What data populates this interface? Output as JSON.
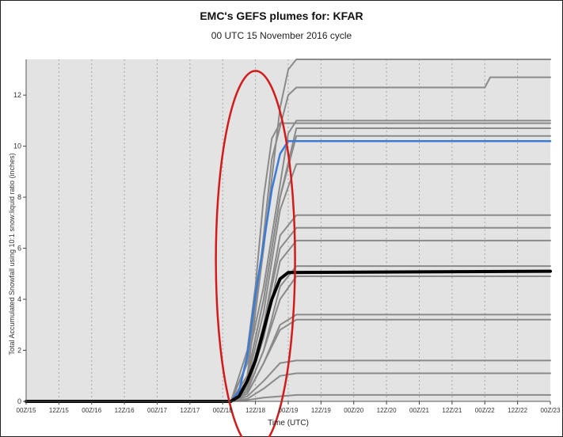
{
  "chart_data": {
    "type": "line",
    "title": "EMC's GEFS plumes for: KFAR",
    "subtitle": "00 UTC 15 November 2016 cycle",
    "xlabel": "Time (UTC)",
    "ylabel": "Total Accumulated Snowfall using 10:1 snow:liquid ratio (inches)",
    "x_ticks": [
      "00Z/15",
      "12Z/15",
      "00Z/16",
      "12Z/16",
      "00Z/17",
      "12Z/17",
      "00Z/18",
      "12Z/18",
      "00Z/19",
      "12Z/19",
      "00Z/20",
      "12Z/20",
      "00Z/21",
      "12Z/21",
      "00Z/22",
      "12Z/22",
      "00Z/23"
    ],
    "xlim": [
      0,
      192
    ],
    "ylim": [
      0,
      13.4
    ],
    "y_ticks": [
      0,
      2,
      4,
      6,
      8,
      10,
      12
    ],
    "grid": true,
    "series": [
      {
        "role": "member",
        "color": "#8a8a8a",
        "width": 2,
        "points": [
          [
            0,
            0
          ],
          [
            75,
            0
          ],
          [
            81,
            1.0
          ],
          [
            87,
            6.0
          ],
          [
            93,
            11.5
          ],
          [
            96,
            13.0
          ],
          [
            99,
            13.4
          ],
          [
            192,
            13.4
          ]
        ]
      },
      {
        "role": "member",
        "color": "#8a8a8a",
        "width": 2,
        "points": [
          [
            0,
            0
          ],
          [
            75,
            0
          ],
          [
            81,
            2.0
          ],
          [
            84,
            4.5
          ],
          [
            87,
            8.0
          ],
          [
            90,
            10.3
          ],
          [
            93,
            10.9
          ],
          [
            192,
            10.9
          ]
        ]
      },
      {
        "role": "member",
        "color": "#8a8a8a",
        "width": 2,
        "points": [
          [
            0,
            0
          ],
          [
            75,
            0
          ],
          [
            81,
            1.5
          ],
          [
            86,
            5.5
          ],
          [
            90,
            9.5
          ],
          [
            96,
            12.0
          ],
          [
            99,
            12.3
          ],
          [
            165,
            12.3
          ],
          [
            168,
            12.3
          ],
          [
            170,
            12.7
          ],
          [
            173,
            12.7
          ],
          [
            192,
            12.7
          ]
        ]
      },
      {
        "role": "member",
        "color": "#8a8a8a",
        "width": 2,
        "points": [
          [
            0,
            0
          ],
          [
            75,
            0
          ],
          [
            81,
            1.5
          ],
          [
            87,
            4.5
          ],
          [
            93,
            8.5
          ],
          [
            96,
            10.5
          ],
          [
            99,
            11.0
          ],
          [
            192,
            11.0
          ]
        ]
      },
      {
        "role": "member",
        "color": "#8a8a8a",
        "width": 2,
        "points": [
          [
            0,
            0
          ],
          [
            75,
            0
          ],
          [
            81,
            1.0
          ],
          [
            87,
            4.0
          ],
          [
            93,
            8.0
          ],
          [
            99,
            10.7
          ],
          [
            192,
            10.7
          ]
        ]
      },
      {
        "role": "member",
        "color": "#8a8a8a",
        "width": 2,
        "points": [
          [
            0,
            0
          ],
          [
            75,
            0
          ],
          [
            81,
            1.0
          ],
          [
            87,
            4.0
          ],
          [
            93,
            8.0
          ],
          [
            99,
            10.4
          ],
          [
            192,
            10.4
          ]
        ]
      },
      {
        "role": "member",
        "color": "#8a8a8a",
        "width": 2,
        "points": [
          [
            0,
            0
          ],
          [
            75,
            0
          ],
          [
            81,
            0.8
          ],
          [
            87,
            3.5
          ],
          [
            93,
            7.5
          ],
          [
            99,
            9.3
          ],
          [
            192,
            9.3
          ]
        ]
      },
      {
        "role": "member",
        "color": "#8a8a8a",
        "width": 2,
        "points": [
          [
            0,
            0
          ],
          [
            75,
            0
          ],
          [
            81,
            0.6
          ],
          [
            87,
            3.0
          ],
          [
            93,
            6.5
          ],
          [
            99,
            7.3
          ],
          [
            192,
            7.3
          ]
        ]
      },
      {
        "role": "member",
        "color": "#8a8a8a",
        "width": 2,
        "points": [
          [
            0,
            0
          ],
          [
            75,
            0
          ],
          [
            81,
            0.6
          ],
          [
            87,
            3.0
          ],
          [
            93,
            6.0
          ],
          [
            99,
            6.8
          ],
          [
            192,
            6.8
          ]
        ]
      },
      {
        "role": "member",
        "color": "#8a8a8a",
        "width": 2,
        "points": [
          [
            0,
            0
          ],
          [
            75,
            0
          ],
          [
            81,
            0.5
          ],
          [
            87,
            2.5
          ],
          [
            93,
            5.5
          ],
          [
            99,
            6.3
          ],
          [
            192,
            6.3
          ]
        ]
      },
      {
        "role": "member",
        "color": "#8a8a8a",
        "width": 2,
        "points": [
          [
            0,
            0
          ],
          [
            75,
            0
          ],
          [
            81,
            0.4
          ],
          [
            87,
            2.0
          ],
          [
            93,
            4.5
          ],
          [
            99,
            5.3
          ],
          [
            192,
            5.3
          ]
        ]
      },
      {
        "role": "member",
        "color": "#8a8a8a",
        "width": 2,
        "points": [
          [
            0,
            0
          ],
          [
            75,
            0
          ],
          [
            81,
            0.4
          ],
          [
            87,
            2.0
          ],
          [
            93,
            4.0
          ],
          [
            99,
            4.9
          ],
          [
            192,
            4.9
          ]
        ]
      },
      {
        "role": "member",
        "color": "#8a8a8a",
        "width": 2,
        "points": [
          [
            0,
            0
          ],
          [
            75,
            0
          ],
          [
            81,
            0.3
          ],
          [
            87,
            1.5
          ],
          [
            93,
            3.0
          ],
          [
            99,
            3.4
          ],
          [
            192,
            3.4
          ]
        ]
      },
      {
        "role": "member",
        "color": "#8a8a8a",
        "width": 2,
        "points": [
          [
            0,
            0
          ],
          [
            75,
            0
          ],
          [
            81,
            0.3
          ],
          [
            87,
            1.5
          ],
          [
            93,
            2.8
          ],
          [
            99,
            3.2
          ],
          [
            192,
            3.2
          ]
        ]
      },
      {
        "role": "member",
        "color": "#8a8a8a",
        "width": 2,
        "points": [
          [
            0,
            0
          ],
          [
            75,
            0
          ],
          [
            81,
            0.2
          ],
          [
            87,
            0.8
          ],
          [
            93,
            1.5
          ],
          [
            99,
            1.6
          ],
          [
            192,
            1.6
          ]
        ]
      },
      {
        "role": "member",
        "color": "#8a8a8a",
        "width": 2,
        "points": [
          [
            0,
            0
          ],
          [
            75,
            0
          ],
          [
            81,
            0.1
          ],
          [
            87,
            0.5
          ],
          [
            93,
            1.0
          ],
          [
            99,
            1.1
          ],
          [
            192,
            1.1
          ]
        ]
      },
      {
        "role": "member",
        "color": "#8a8a8a",
        "width": 2,
        "points": [
          [
            0,
            0
          ],
          [
            75,
            0
          ],
          [
            81,
            0.05
          ],
          [
            87,
            0.15
          ],
          [
            93,
            0.2
          ],
          [
            99,
            0.25
          ],
          [
            192,
            0.25
          ]
        ]
      },
      {
        "role": "member",
        "color": "#3a7bd5",
        "width": 2.5,
        "points": [
          [
            0,
            0
          ],
          [
            75,
            0
          ],
          [
            78,
            0.4
          ],
          [
            81,
            1.8
          ],
          [
            84,
            4.2
          ],
          [
            87,
            6.2
          ],
          [
            90,
            8.3
          ],
          [
            93,
            9.7
          ],
          [
            96,
            10.2
          ],
          [
            192,
            10.2
          ]
        ]
      },
      {
        "role": "mean",
        "color": "#000000",
        "width": 4,
        "points": [
          [
            0,
            0
          ],
          [
            75,
            0
          ],
          [
            78,
            0.2
          ],
          [
            81,
            0.8
          ],
          [
            84,
            1.6
          ],
          [
            87,
            2.8
          ],
          [
            90,
            4.0
          ],
          [
            93,
            4.8
          ],
          [
            96,
            5.05
          ],
          [
            192,
            5.1
          ]
        ]
      }
    ],
    "annotation": {
      "shape": "ellipse",
      "color": "#d41a1a",
      "cx_x": 84,
      "cy_y": 5.55,
      "rx_hours": 14.5,
      "ry_inches": 7.4
    }
  }
}
